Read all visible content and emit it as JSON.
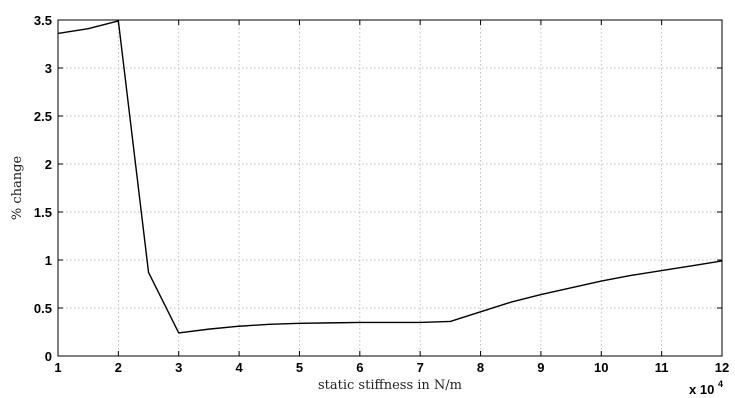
{
  "chart_data": {
    "type": "line",
    "xlabel": "static stiffness in N/m",
    "ylabel": "% change",
    "x_multiplier_base": "x 10",
    "x_multiplier_exp": "4",
    "xlim": [
      1,
      12
    ],
    "ylim": [
      0,
      3.5
    ],
    "x_ticks": [
      1,
      2,
      3,
      4,
      5,
      6,
      7,
      8,
      9,
      10,
      11,
      12
    ],
    "y_ticks": [
      0,
      0.5,
      1,
      1.5,
      2,
      2.5,
      3,
      3.5
    ],
    "grid": true,
    "series": [
      {
        "color": "#000000",
        "points": [
          [
            1.0,
            3.36
          ],
          [
            1.5,
            3.41
          ],
          [
            2.0,
            3.49
          ],
          [
            2.5,
            0.87
          ],
          [
            3.0,
            0.24
          ],
          [
            3.5,
            0.28
          ],
          [
            4.0,
            0.31
          ],
          [
            4.5,
            0.33
          ],
          [
            5.0,
            0.34
          ],
          [
            5.5,
            0.345
          ],
          [
            6.0,
            0.35
          ],
          [
            6.5,
            0.35
          ],
          [
            7.0,
            0.35
          ],
          [
            7.5,
            0.36
          ],
          [
            8.0,
            0.46
          ],
          [
            8.5,
            0.56
          ],
          [
            9.0,
            0.64
          ],
          [
            9.5,
            0.71
          ],
          [
            10.0,
            0.78
          ],
          [
            10.5,
            0.84
          ],
          [
            11.0,
            0.89
          ],
          [
            11.5,
            0.94
          ],
          [
            12.0,
            0.99
          ]
        ]
      }
    ]
  }
}
